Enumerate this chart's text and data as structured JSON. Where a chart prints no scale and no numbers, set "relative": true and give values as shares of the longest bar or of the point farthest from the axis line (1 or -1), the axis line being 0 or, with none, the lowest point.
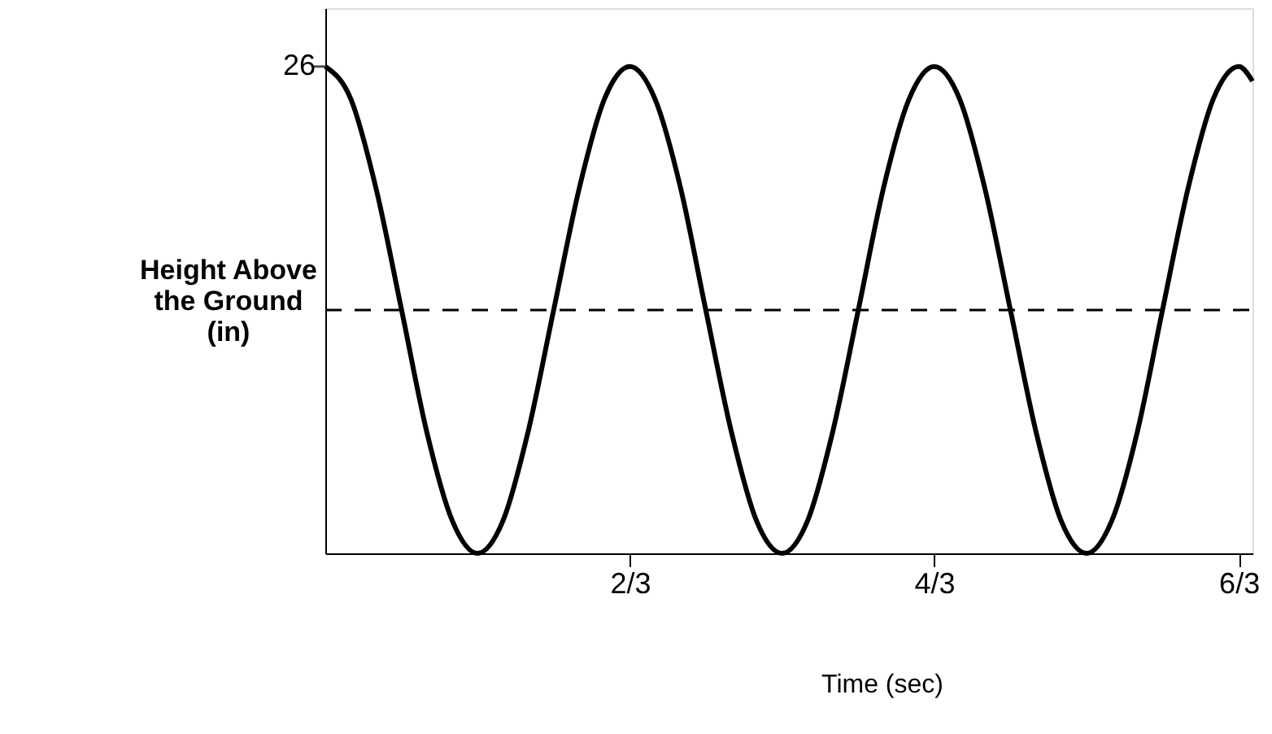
{
  "chart_data": {
    "type": "line",
    "relative": true,
    "xlabel": "Time (sec)",
    "ylabel": "Height Above\nthe Ground\n(in)",
    "x": [
      0,
      0.056,
      0.111,
      0.167,
      0.222,
      0.278,
      0.333,
      0.389,
      0.444,
      0.5,
      0.556,
      0.611,
      0.667,
      0.722,
      0.778,
      0.833,
      0.889,
      0.944,
      1,
      1.056,
      1.111,
      1.167,
      1.222,
      1.278,
      1.333,
      1.389,
      1.444,
      1.5,
      1.556,
      1.611,
      1.667,
      1.722,
      1.778,
      1.833,
      1.889,
      1.944,
      2,
      2.03
    ],
    "series": [
      {
        "color": "#000000",
        "values": [
          1,
          0.933,
          0.75,
          0.5,
          0.25,
          0.067,
          0,
          0.067,
          0.25,
          0.5,
          0.75,
          0.933,
          1,
          0.933,
          0.75,
          0.5,
          0.25,
          0.067,
          0,
          0.067,
          0.25,
          0.5,
          0.75,
          0.933,
          1,
          0.933,
          0.75,
          0.5,
          0.25,
          0.067,
          0,
          0.067,
          0.25,
          0.5,
          0.75,
          0.933,
          1,
          0.97
        ]
      }
    ],
    "xlim": [
      0,
      2.03
    ],
    "xticks": [
      {
        "value": 0.667,
        "label": "2/3"
      },
      {
        "value": 1.333,
        "label": "4/3"
      },
      {
        "value": 2,
        "label": "6/3"
      }
    ],
    "annotations": [
      {
        "text": "26",
        "x": 0,
        "y": 1
      }
    ],
    "ref_lines": [
      {
        "axis": "y",
        "value": 0.5,
        "line_style": "dashed",
        "color": "#000000"
      }
    ],
    "line_style": "solid",
    "marker": "none",
    "grid": false
  }
}
